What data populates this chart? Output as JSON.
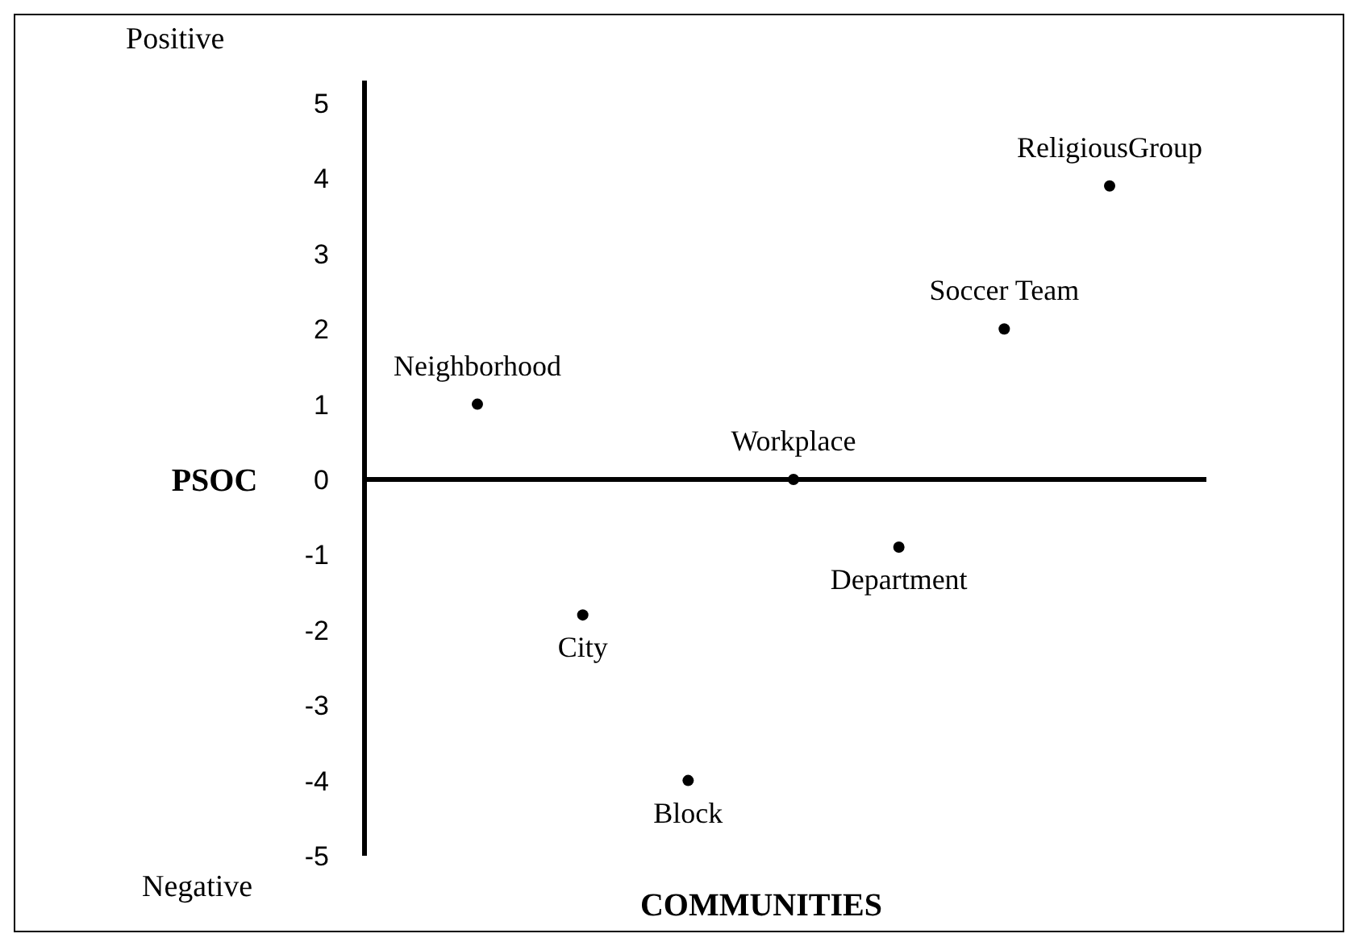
{
  "chart_data": {
    "type": "scatter",
    "xlabel": "COMMUNITIES",
    "ylabel": "PSOC",
    "categories": [
      "Neighborhood",
      "City",
      "Block",
      "Workplace",
      "Department",
      "Soccer Team",
      "ReligiousGroup"
    ],
    "values": [
      1,
      -1.8,
      -4,
      0,
      -0.9,
      2,
      3.9
    ],
    "color": "#000000",
    "marker": "circle",
    "ylim": [
      -5,
      5.3
    ],
    "yticks": [
      -5,
      -4,
      -3,
      -2,
      -1,
      0,
      1,
      2,
      3,
      4,
      5
    ],
    "annotations": [
      "Positive",
      "Negative"
    ]
  }
}
